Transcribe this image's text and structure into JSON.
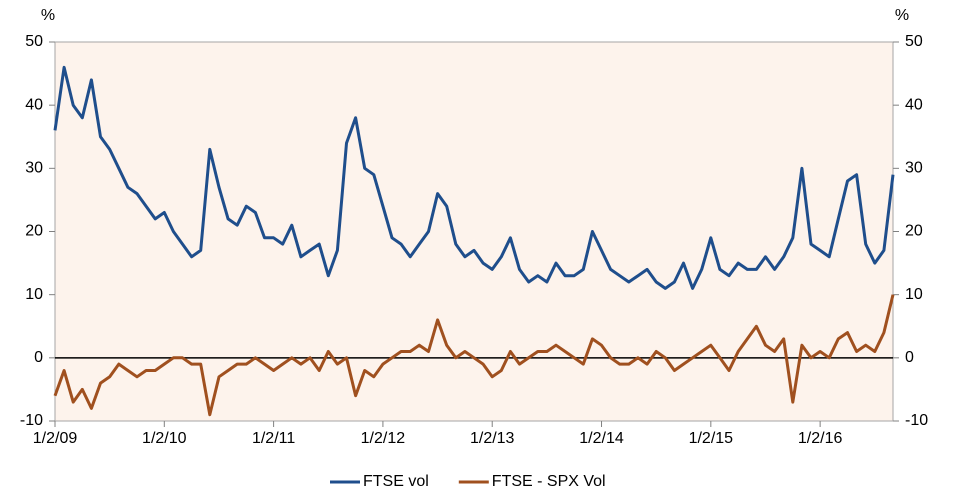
{
  "chart_data": {
    "type": "line",
    "ylabel": "%",
    "y2label": "%",
    "categories": [
      "1/2/09",
      null,
      null,
      null,
      null,
      null,
      null,
      null,
      null,
      null,
      null,
      null,
      "1/2/10",
      null,
      null,
      null,
      null,
      null,
      null,
      null,
      null,
      null,
      null,
      null,
      "1/2/11",
      null,
      null,
      null,
      null,
      null,
      null,
      null,
      null,
      null,
      null,
      null,
      "1/2/12",
      null,
      null,
      null,
      null,
      null,
      null,
      null,
      null,
      null,
      null,
      null,
      "1/2/13",
      null,
      null,
      null,
      null,
      null,
      null,
      null,
      null,
      null,
      null,
      null,
      "1/2/14",
      null,
      null,
      null,
      null,
      null,
      null,
      null,
      null,
      null,
      null,
      null,
      "1/2/15",
      null,
      null,
      null,
      null,
      null,
      null,
      null,
      null,
      null,
      null,
      null,
      "1/2/16",
      null,
      null,
      null,
      null,
      null,
      null,
      null,
      null
    ],
    "series": [
      {
        "name": "FTSE vol",
        "color": "#1f4e8c",
        "values": [
          36,
          46,
          40,
          38,
          44,
          35,
          33,
          30,
          27,
          26,
          24,
          22,
          23,
          20,
          18,
          16,
          17,
          33,
          27,
          22,
          21,
          24,
          23,
          19,
          19,
          18,
          21,
          16,
          17,
          18,
          13,
          17,
          34,
          38,
          30,
          29,
          24,
          19,
          18,
          16,
          18,
          20,
          26,
          24,
          18,
          16,
          17,
          15,
          14,
          16,
          19,
          14,
          12,
          13,
          12,
          15,
          13,
          13,
          14,
          20,
          17,
          14,
          13,
          12,
          13,
          14,
          12,
          11,
          12,
          15,
          11,
          14,
          19,
          14,
          13,
          15,
          14,
          14,
          16,
          14,
          16,
          19,
          30,
          18,
          17,
          16,
          22,
          28,
          29,
          18,
          15,
          17,
          29
        ]
      },
      {
        "name": "FTSE - SPX Vol",
        "color": "#a0501f",
        "values": [
          -6,
          -2,
          -7,
          -5,
          -8,
          -4,
          -3,
          -1,
          -2,
          -3,
          -2,
          -2,
          -1,
          0,
          0,
          -1,
          -1,
          -9,
          -3,
          -2,
          -1,
          -1,
          0,
          -1,
          -2,
          -1,
          0,
          -1,
          0,
          -2,
          1,
          -1,
          0,
          -6,
          -2,
          -3,
          -1,
          0,
          1,
          1,
          2,
          1,
          6,
          2,
          0,
          1,
          0,
          -1,
          -3,
          -2,
          1,
          -1,
          0,
          1,
          1,
          2,
          1,
          0,
          -1,
          3,
          2,
          0,
          -1,
          -1,
          0,
          -1,
          1,
          0,
          -2,
          -1,
          0,
          1,
          2,
          0,
          -2,
          1,
          3,
          5,
          2,
          1,
          3,
          -7,
          2,
          0,
          1,
          0,
          3,
          4,
          1,
          2,
          1,
          4,
          10
        ]
      }
    ],
    "ylim": [
      -10,
      50
    ],
    "yticks": [
      -10,
      0,
      10,
      20,
      30,
      40,
      50
    ],
    "y2lim": [
      -10,
      50
    ],
    "y2ticks": [
      -10,
      0,
      10,
      20,
      30,
      40,
      50
    ],
    "grid": false,
    "legend": "bottom"
  }
}
